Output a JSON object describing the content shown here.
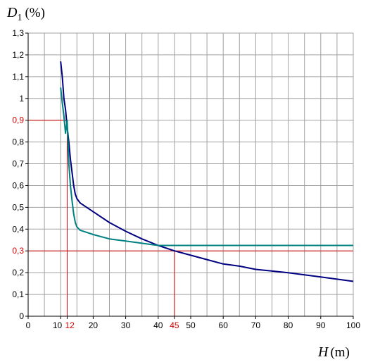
{
  "chart_data": {
    "type": "line",
    "xlabel": {
      "var": "H",
      "unit": "(m)"
    },
    "ylabel": {
      "var": "D",
      "sub": "1",
      "unit": "(%)"
    },
    "xlim": [
      0,
      100
    ],
    "ylim": [
      0,
      1.3
    ],
    "grid": true,
    "legend": "none",
    "x_ticks": [
      {
        "value": 0,
        "label": "0"
      },
      {
        "value": 10,
        "label": "10"
      },
      {
        "value": 12,
        "label": "12",
        "highlight": true
      },
      {
        "value": 20,
        "label": "20"
      },
      {
        "value": 30,
        "label": "30"
      },
      {
        "value": 40,
        "label": "40"
      },
      {
        "value": 45,
        "label": "45",
        "highlight": true
      },
      {
        "value": 50,
        "label": "50"
      },
      {
        "value": 60,
        "label": "60"
      },
      {
        "value": 70,
        "label": "70"
      },
      {
        "value": 80,
        "label": "80"
      },
      {
        "value": 90,
        "label": "90"
      },
      {
        "value": 100,
        "label": "100"
      }
    ],
    "y_ticks": [
      {
        "value": 0,
        "label": "0"
      },
      {
        "value": 0.1,
        "label": "0,1"
      },
      {
        "value": 0.2,
        "label": "0,2"
      },
      {
        "value": 0.3,
        "label": "0,3",
        "highlight": true
      },
      {
        "value": 0.4,
        "label": "0,4"
      },
      {
        "value": 0.5,
        "label": "0,5"
      },
      {
        "value": 0.6,
        "label": "0,6"
      },
      {
        "value": 0.7,
        "label": "0,7"
      },
      {
        "value": 0.8,
        "label": "0,8"
      },
      {
        "value": 0.9,
        "label": "0,9",
        "highlight": true
      },
      {
        "value": 1.0,
        "label": "1"
      },
      {
        "value": 1.1,
        "label": "1,1"
      },
      {
        "value": 1.2,
        "label": "1,2"
      },
      {
        "value": 1.3,
        "label": "1,3"
      }
    ],
    "series": [
      {
        "color": "#000080",
        "x": [
          10,
          10.5,
          11,
          11.5,
          12,
          12.5,
          13,
          13.5,
          14,
          14.5,
          15,
          16,
          18,
          20,
          25,
          30,
          35,
          40,
          45,
          50,
          55,
          60,
          65,
          70,
          80,
          90,
          100
        ],
        "y": [
          1.17,
          1.1,
          1.0,
          0.95,
          0.87,
          0.8,
          0.72,
          0.66,
          0.6,
          0.56,
          0.54,
          0.52,
          0.5,
          0.48,
          0.43,
          0.39,
          0.355,
          0.325,
          0.3,
          0.28,
          0.26,
          0.24,
          0.23,
          0.215,
          0.2,
          0.18,
          0.16
        ]
      },
      {
        "color": "#008080",
        "x": [
          10,
          10.5,
          11,
          11.5,
          12,
          12.5,
          13,
          13.5,
          14,
          14.5,
          15,
          16,
          18,
          20,
          25,
          30,
          35,
          40,
          45,
          50,
          60,
          70,
          80,
          90,
          100
        ],
        "y": [
          1.05,
          0.98,
          0.92,
          0.84,
          0.9,
          0.7,
          0.6,
          0.53,
          0.47,
          0.43,
          0.41,
          0.395,
          0.385,
          0.375,
          0.355,
          0.345,
          0.335,
          0.325,
          0.325,
          0.325,
          0.325,
          0.325,
          0.325,
          0.325,
          0.325
        ]
      }
    ],
    "guides": [
      {
        "from": [
          0,
          0.9
        ],
        "to": [
          12,
          0.9
        ]
      },
      {
        "from": [
          12,
          0.9
        ],
        "to": [
          12,
          0
        ]
      },
      {
        "from": [
          0,
          0.3
        ],
        "to": [
          100,
          0.3
        ]
      },
      {
        "from": [
          45,
          0.3
        ],
        "to": [
          45,
          0
        ]
      }
    ],
    "colors": {
      "axis": "#000000",
      "grid": "#a0a0a0",
      "guide": "#d40000"
    }
  }
}
